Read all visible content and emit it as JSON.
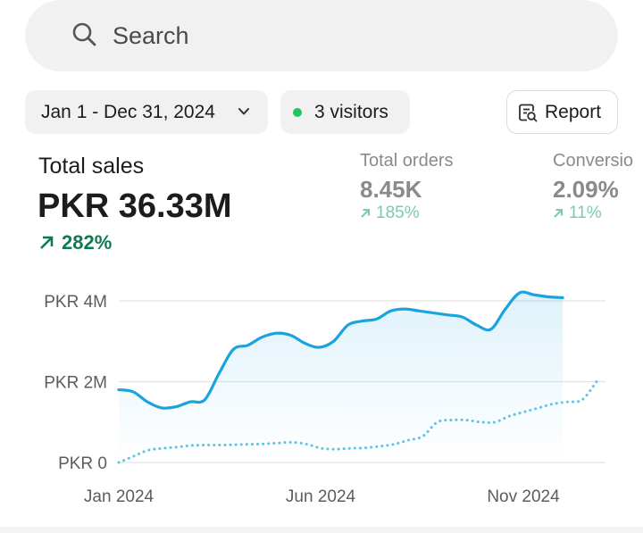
{
  "search": {
    "placeholder": "Search",
    "icon": "search-icon"
  },
  "filters": {
    "date_range": "Jan 1 - Dec 31, 2024",
    "visitors": "3 visitors",
    "report": "Report"
  },
  "colors": {
    "accent": "#1aa3dd",
    "positive": "#0f7a4d",
    "positive_muted": "#7fc9a8",
    "live_dot": "#22c55e"
  },
  "metrics": [
    {
      "title": "Total sales",
      "value": "PKR 36.33M",
      "change": "282%"
    },
    {
      "title": "Total orders",
      "value": "8.45K",
      "change": "185%"
    },
    {
      "title": "Conversio",
      "value": "2.09%",
      "change": "11%"
    }
  ],
  "chart_data": {
    "type": "line",
    "x_ticks": [
      "Jan 2024",
      "Jun 2024",
      "Nov 2024"
    ],
    "y_ticks": [
      "PKR 0",
      "PKR 2M",
      "PKR 4M"
    ],
    "ylim": [
      0,
      4000000
    ],
    "grid": true,
    "series": [
      {
        "style": "solid-with-area",
        "values": [
          1800000,
          1750000,
          1500000,
          1350000,
          1380000,
          1500000,
          1550000,
          2200000,
          2800000,
          2900000,
          3100000,
          3200000,
          3150000,
          2950000,
          2850000,
          3000000,
          3400000,
          3500000,
          3550000,
          3750000,
          3800000,
          3750000,
          3700000,
          3650000,
          3600000,
          3400000,
          3300000,
          3800000,
          4200000,
          4150000,
          4100000,
          4080000
        ]
      },
      {
        "style": "dotted",
        "values": [
          0,
          150000,
          300000,
          350000,
          380000,
          420000,
          430000,
          430000,
          440000,
          450000,
          460000,
          480000,
          500000,
          450000,
          350000,
          330000,
          350000,
          360000,
          400000,
          450000,
          550000,
          650000,
          1000000,
          1050000,
          1050000,
          1000000,
          1000000,
          1150000,
          1250000,
          1350000,
          1450000,
          1500000,
          1550000,
          2000000
        ]
      }
    ]
  }
}
